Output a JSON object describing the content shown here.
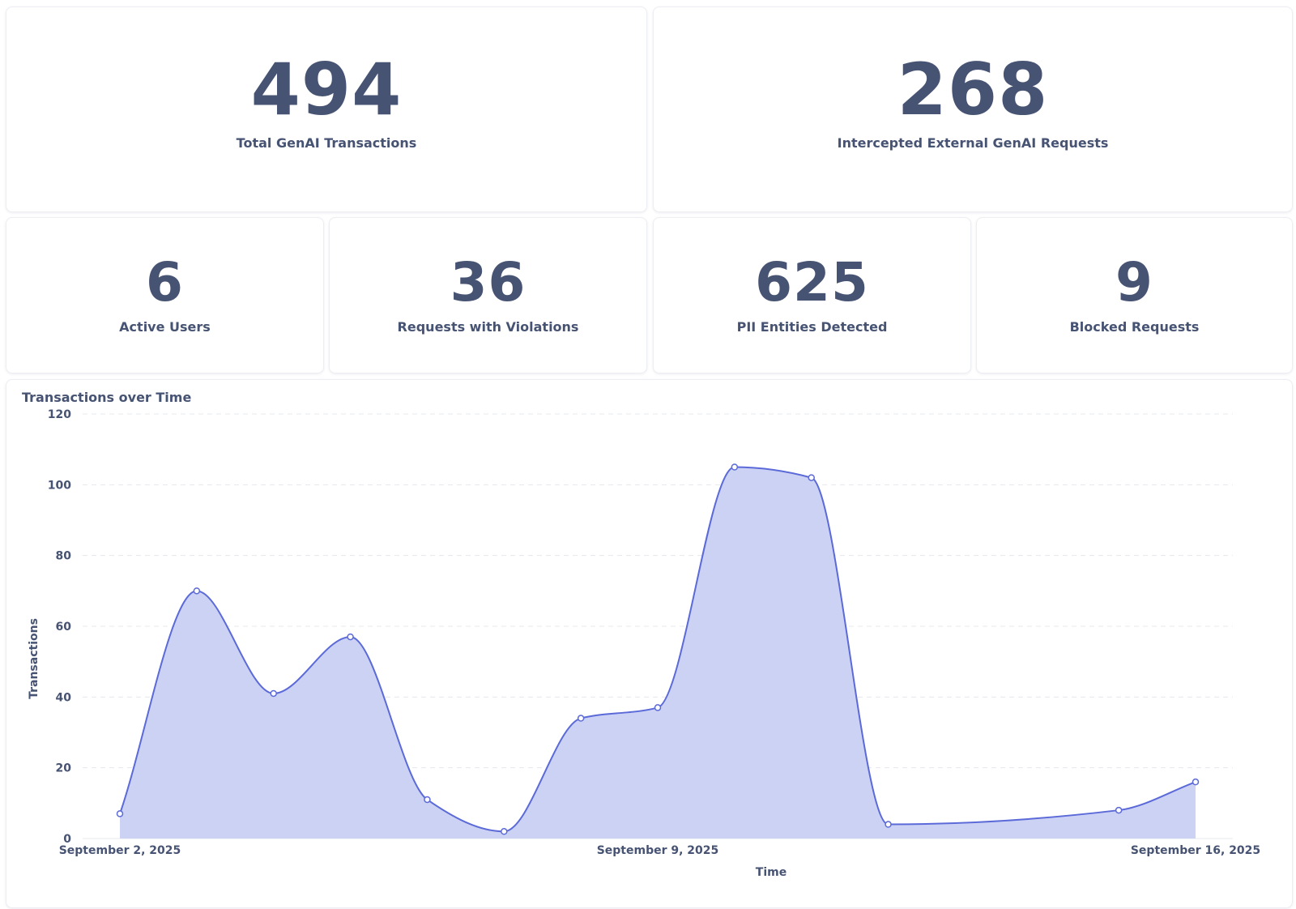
{
  "stats": {
    "total_transactions": {
      "value": "494",
      "label": "Total GenAI Transactions"
    },
    "intercepted_requests": {
      "value": "268",
      "label": "Intercepted External GenAI Requests"
    },
    "active_users": {
      "value": "6",
      "label": "Active Users"
    },
    "violations": {
      "value": "36",
      "label": "Requests with Violations"
    },
    "pii_entities": {
      "value": "625",
      "label": "PII Entities Detected"
    },
    "blocked": {
      "value": "9",
      "label": "Blocked Requests"
    }
  },
  "chart": {
    "title": "Transactions over Time"
  },
  "chart_data": {
    "type": "area",
    "title": "Transactions over Time",
    "xlabel": "Time",
    "ylabel": "Transactions",
    "x": [
      "2025-09-02",
      "2025-09-03",
      "2025-09-04",
      "2025-09-05",
      "2025-09-06",
      "2025-09-07",
      "2025-09-08",
      "2025-09-09",
      "2025-09-10",
      "2025-09-11",
      "2025-09-12",
      "2025-09-15",
      "2025-09-16"
    ],
    "values": [
      7,
      70,
      41,
      57,
      11,
      2,
      34,
      37,
      105,
      102,
      4,
      8,
      16
    ],
    "xlim": [
      "2025-09-02",
      "2025-09-16"
    ],
    "ylim": [
      0,
      120
    ],
    "yticks": [
      0,
      20,
      40,
      60,
      80,
      100,
      120
    ],
    "xtick_labels": [
      "September 2, 2025",
      "September 9, 2025",
      "September 16, 2025"
    ],
    "grid": true,
    "colors": {
      "line": "#5b6ad8",
      "fill": "#cbd2f4"
    }
  }
}
